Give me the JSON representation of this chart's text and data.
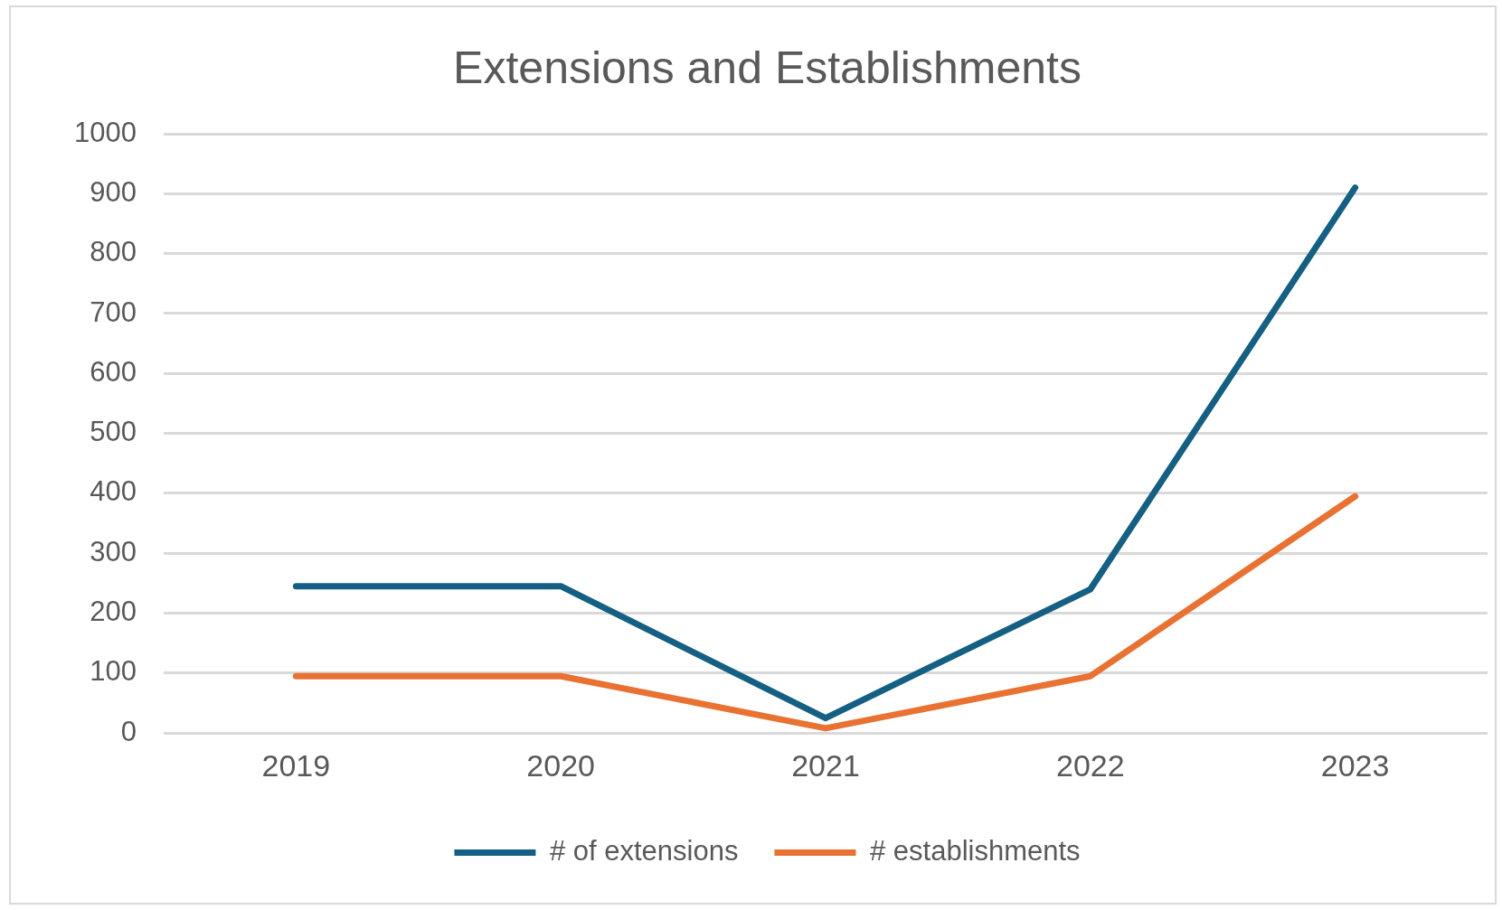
{
  "chart_data": {
    "type": "line",
    "title": "Extensions and Establishments",
    "categories": [
      "2019",
      "2020",
      "2021",
      "2022",
      "2023"
    ],
    "series": [
      {
        "name": "# of extensions",
        "color": "#156082",
        "values": [
          245,
          245,
          25,
          240,
          910
        ]
      },
      {
        "name": "# establishments",
        "color": "#e97132",
        "values": [
          95,
          95,
          8,
          95,
          395
        ]
      }
    ],
    "ylim": [
      0,
      1000
    ],
    "yticks": [
      0,
      100,
      200,
      300,
      400,
      500,
      600,
      700,
      800,
      900,
      1000
    ],
    "grid": "y",
    "legend": "bottom",
    "marker": "none",
    "line_style": "solid"
  }
}
